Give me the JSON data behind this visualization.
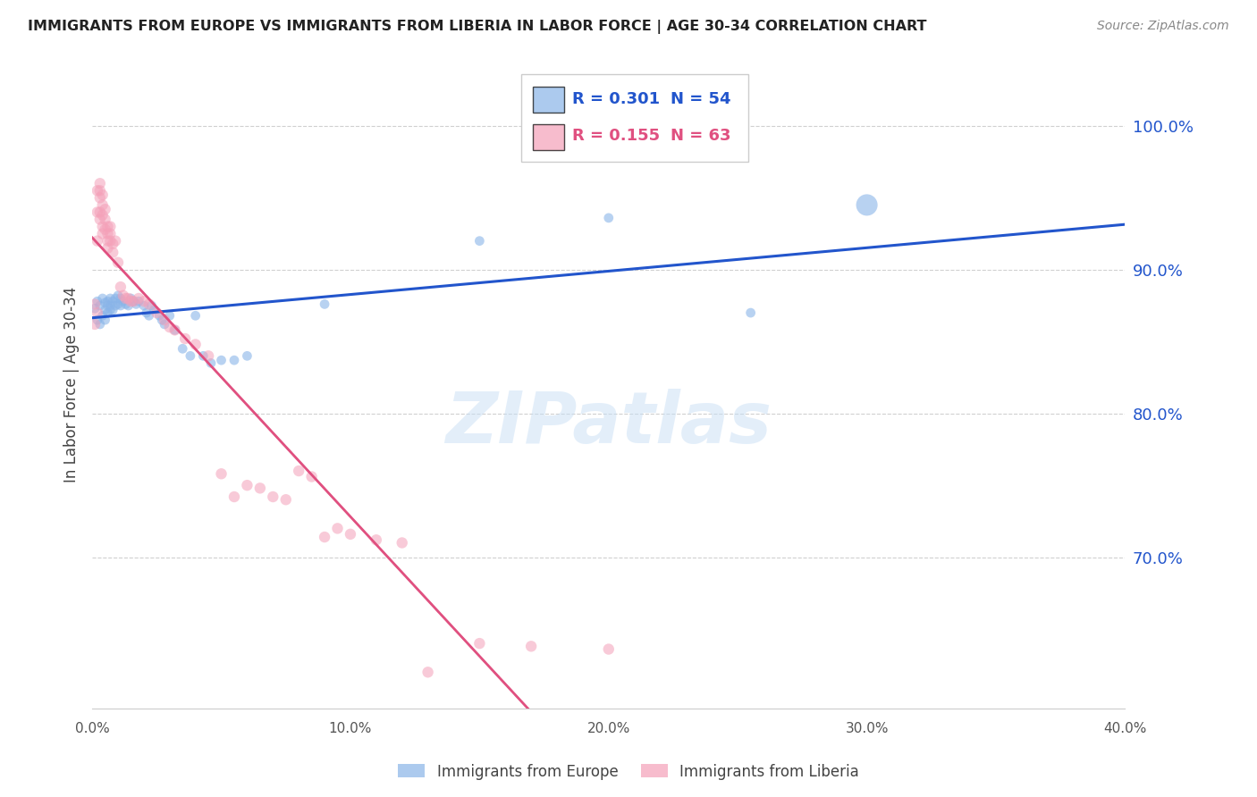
{
  "title": "IMMIGRANTS FROM EUROPE VS IMMIGRANTS FROM LIBERIA IN LABOR FORCE | AGE 30-34 CORRELATION CHART",
  "source": "Source: ZipAtlas.com",
  "ylabel": "In Labor Force | Age 30-34",
  "ytick_labels": [
    "100.0%",
    "90.0%",
    "80.0%",
    "70.0%"
  ],
  "ytick_values": [
    1.0,
    0.9,
    0.8,
    0.7
  ],
  "xlim": [
    0.0,
    0.4
  ],
  "ylim": [
    0.595,
    1.045
  ],
  "legend_R_blue": "0.301",
  "legend_N_blue": "54",
  "legend_R_pink": "0.155",
  "legend_N_pink": "63",
  "blue_color": "#89B4E8",
  "pink_color": "#F4A0B8",
  "blue_line_color": "#2255CC",
  "pink_line_color": "#E05080",
  "pink_dash_color": "#E8A0B0",
  "watermark": "ZIPatlas",
  "blue_scatter_x": [
    0.001,
    0.002,
    0.002,
    0.003,
    0.003,
    0.004,
    0.004,
    0.005,
    0.005,
    0.005,
    0.006,
    0.006,
    0.006,
    0.007,
    0.007,
    0.007,
    0.008,
    0.008,
    0.009,
    0.009,
    0.01,
    0.01,
    0.011,
    0.011,
    0.012,
    0.013,
    0.014,
    0.015,
    0.016,
    0.017,
    0.018,
    0.02,
    0.021,
    0.022,
    0.023,
    0.024,
    0.026,
    0.027,
    0.028,
    0.03,
    0.032,
    0.035,
    0.038,
    0.04,
    0.043,
    0.046,
    0.05,
    0.055,
    0.06,
    0.09,
    0.15,
    0.2,
    0.255,
    0.3
  ],
  "blue_scatter_y": [
    0.873,
    0.878,
    0.865,
    0.875,
    0.862,
    0.88,
    0.868,
    0.877,
    0.872,
    0.865,
    0.875,
    0.87,
    0.878,
    0.875,
    0.872,
    0.88,
    0.878,
    0.872,
    0.875,
    0.88,
    0.876,
    0.882,
    0.875,
    0.88,
    0.878,
    0.876,
    0.875,
    0.88,
    0.878,
    0.876,
    0.878,
    0.875,
    0.87,
    0.868,
    0.875,
    0.872,
    0.868,
    0.865,
    0.862,
    0.868,
    0.858,
    0.845,
    0.84,
    0.868,
    0.84,
    0.835,
    0.837,
    0.837,
    0.84,
    0.876,
    0.92,
    0.936,
    0.87,
    0.945
  ],
  "blue_scatter_size": [
    60,
    60,
    60,
    60,
    60,
    60,
    60,
    60,
    60,
    60,
    60,
    60,
    60,
    60,
    60,
    60,
    60,
    60,
    60,
    60,
    60,
    60,
    60,
    60,
    60,
    60,
    60,
    60,
    60,
    60,
    60,
    60,
    60,
    60,
    60,
    60,
    60,
    60,
    60,
    60,
    60,
    60,
    60,
    60,
    60,
    60,
    60,
    60,
    60,
    60,
    60,
    60,
    60,
    300
  ],
  "pink_scatter_x": [
    0.001,
    0.001,
    0.002,
    0.002,
    0.002,
    0.002,
    0.003,
    0.003,
    0.003,
    0.003,
    0.003,
    0.004,
    0.004,
    0.004,
    0.004,
    0.004,
    0.005,
    0.005,
    0.005,
    0.006,
    0.006,
    0.006,
    0.006,
    0.007,
    0.007,
    0.007,
    0.008,
    0.008,
    0.009,
    0.01,
    0.011,
    0.012,
    0.013,
    0.014,
    0.015,
    0.016,
    0.018,
    0.02,
    0.022,
    0.025,
    0.028,
    0.03,
    0.032,
    0.036,
    0.04,
    0.045,
    0.05,
    0.055,
    0.06,
    0.065,
    0.07,
    0.075,
    0.08,
    0.085,
    0.09,
    0.095,
    0.1,
    0.11,
    0.12,
    0.13,
    0.15,
    0.17,
    0.2
  ],
  "pink_scatter_y": [
    0.876,
    0.862,
    0.87,
    0.955,
    0.94,
    0.92,
    0.96,
    0.955,
    0.95,
    0.94,
    0.935,
    0.952,
    0.945,
    0.938,
    0.93,
    0.925,
    0.935,
    0.942,
    0.928,
    0.93,
    0.92,
    0.915,
    0.925,
    0.93,
    0.925,
    0.92,
    0.918,
    0.912,
    0.92,
    0.905,
    0.888,
    0.882,
    0.88,
    0.88,
    0.878,
    0.878,
    0.88,
    0.878,
    0.876,
    0.87,
    0.865,
    0.86,
    0.858,
    0.852,
    0.848,
    0.84,
    0.758,
    0.742,
    0.75,
    0.748,
    0.742,
    0.74,
    0.76,
    0.756,
    0.714,
    0.72,
    0.716,
    0.712,
    0.71,
    0.62,
    0.64,
    0.638,
    0.636
  ]
}
